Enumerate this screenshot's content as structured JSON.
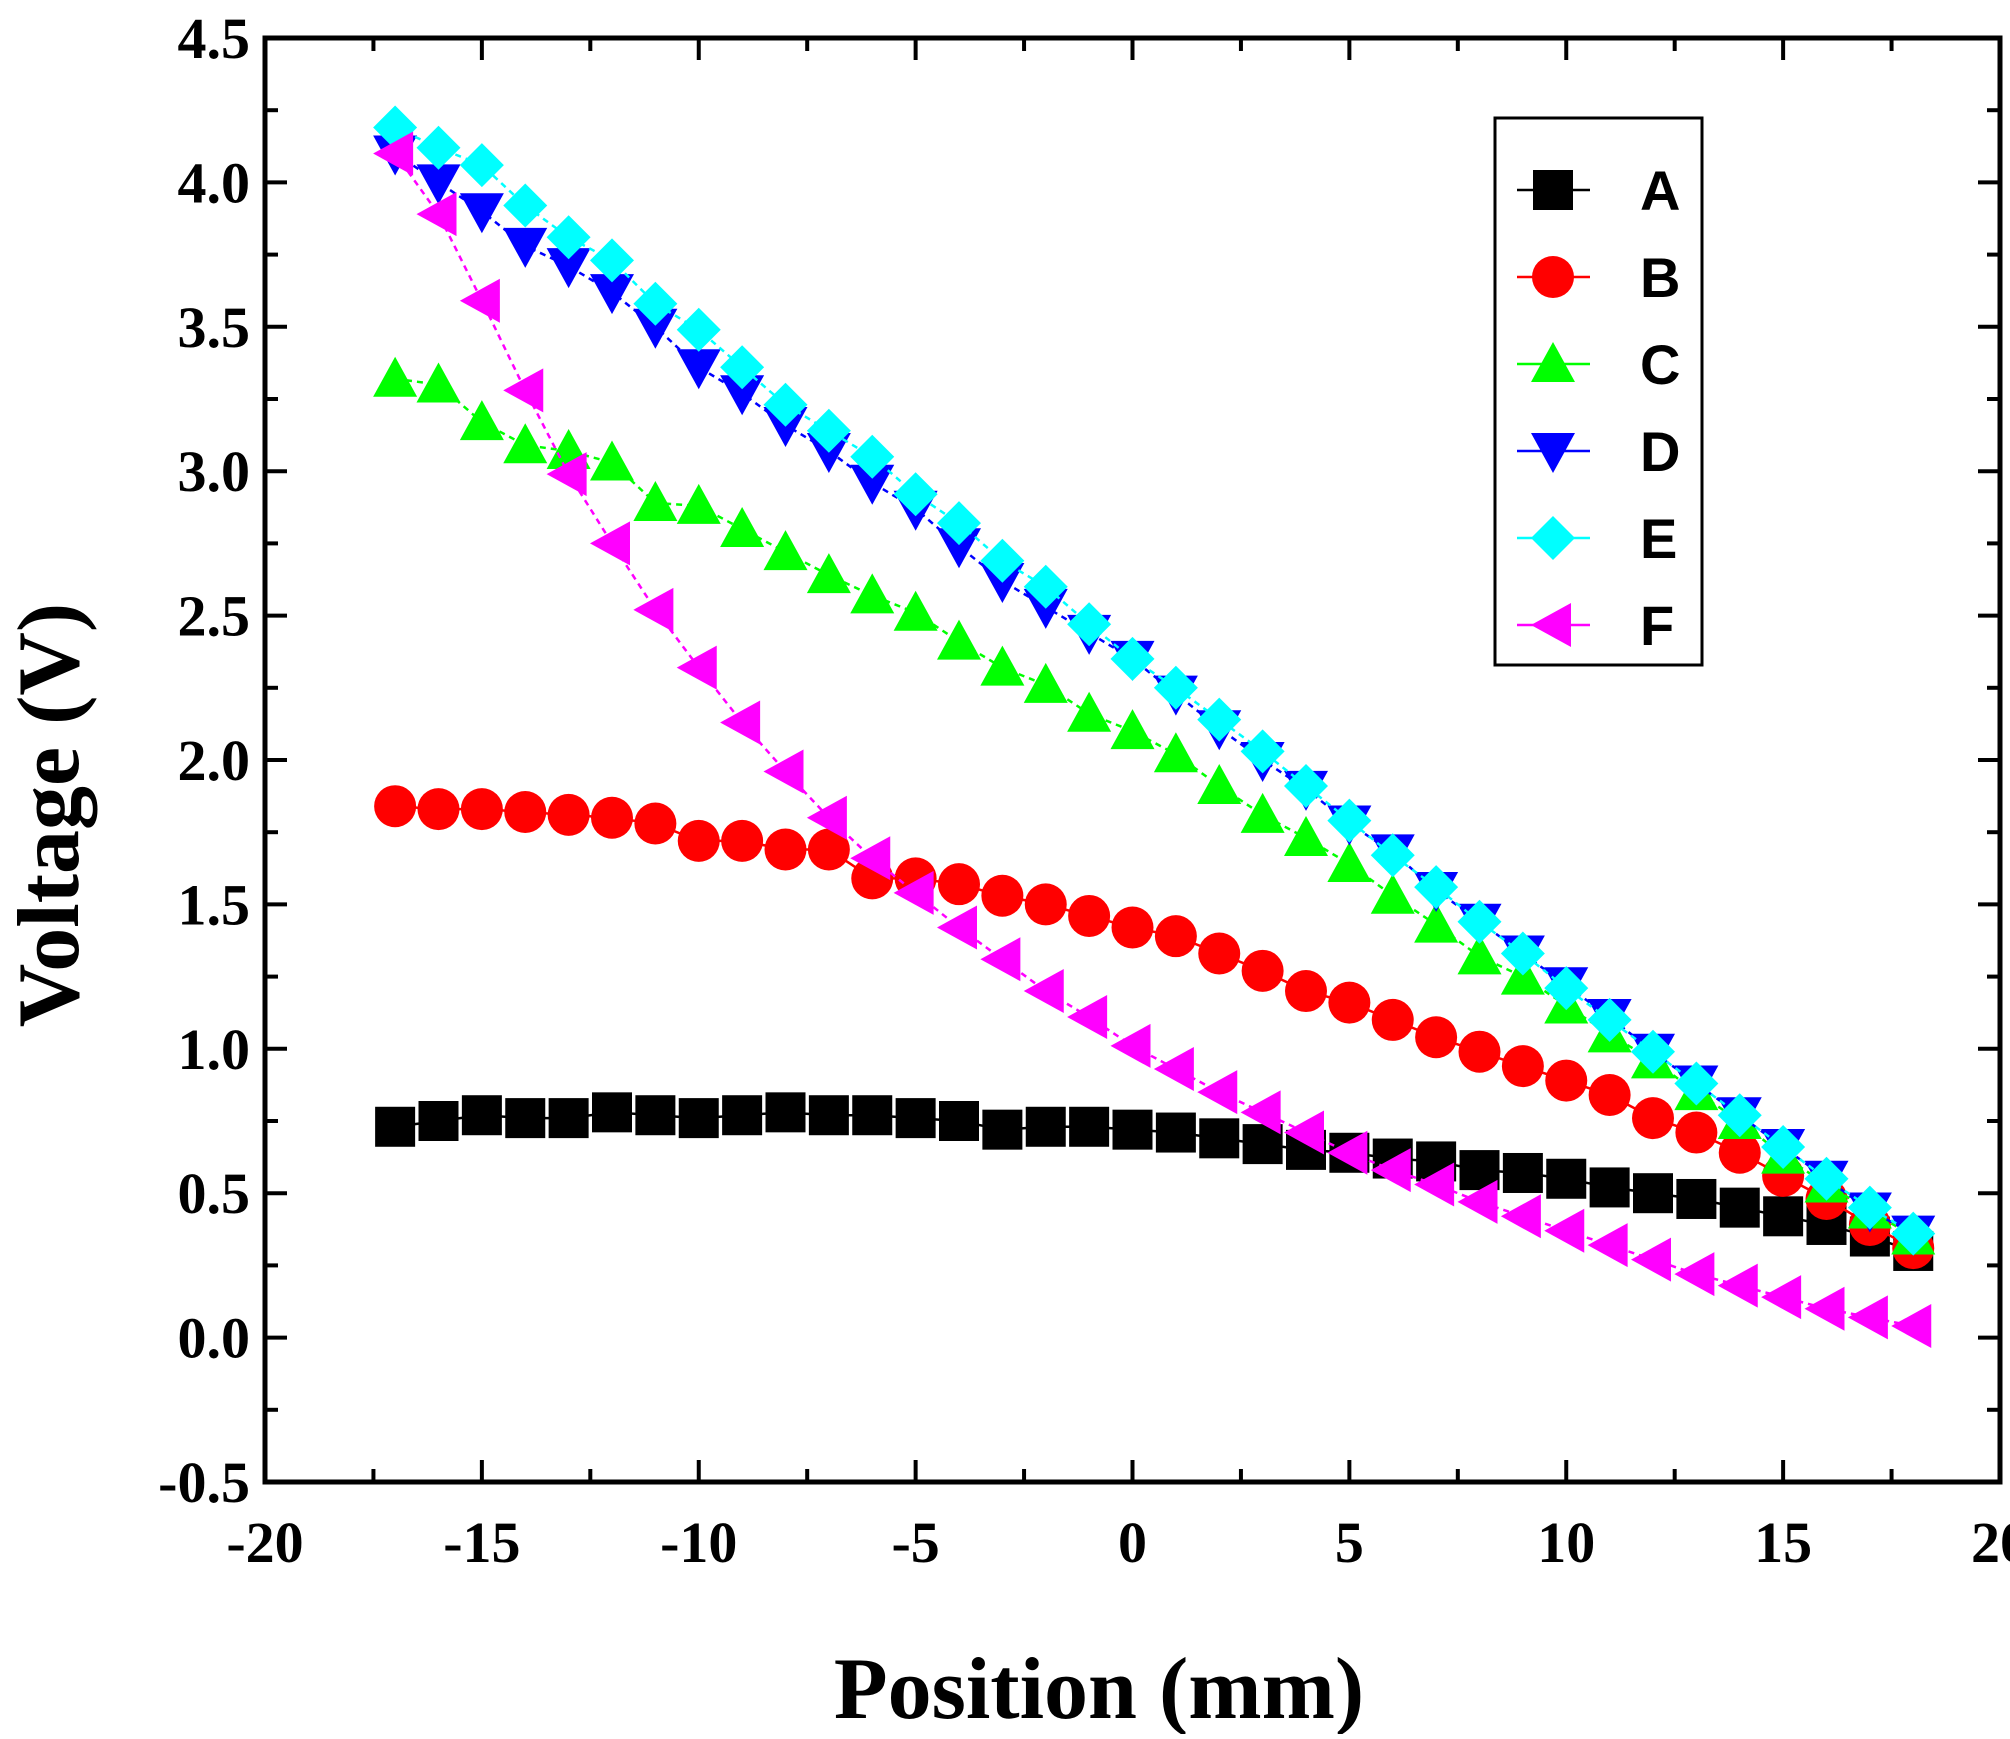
{
  "chart_data": {
    "type": "line",
    "title": "",
    "xlabel": "Position (mm)",
    "ylabel": "Voltage (V)",
    "xlim": [
      -20,
      20
    ],
    "ylim": [
      -0.5,
      4.5
    ],
    "xticks": [
      -20,
      -15,
      -10,
      -5,
      0,
      5,
      10,
      15,
      20
    ],
    "xtick_labels": [
      "-20",
      "-15",
      "-10",
      "-5",
      "0",
      "5",
      "10",
      "15",
      "20"
    ],
    "yticks": [
      -0.5,
      0.0,
      0.5,
      1.0,
      1.5,
      2.0,
      2.5,
      3.0,
      3.5,
      4.0,
      4.5
    ],
    "ytick_labels": [
      "-0.5",
      "0.0",
      "0.5",
      "1.0",
      "1.5",
      "2.0",
      "2.5",
      "3.0",
      "3.5",
      "4.0",
      "4.5"
    ],
    "grid": false,
    "legend_position": "top-right",
    "x": [
      -17,
      -16,
      -15,
      -14,
      -13,
      -12,
      -11,
      -10,
      -9,
      -8,
      -7,
      -6,
      -5,
      -4,
      -3,
      -2,
      -1,
      0,
      1,
      2,
      3,
      4,
      5,
      6,
      7,
      8,
      9,
      10,
      11,
      12,
      13,
      14,
      15,
      16,
      17,
      18
    ],
    "series": [
      {
        "name": "A",
        "marker": "square",
        "color": "#000000",
        "values": [
          0.73,
          0.75,
          0.77,
          0.76,
          0.76,
          0.78,
          0.77,
          0.76,
          0.77,
          0.78,
          0.77,
          0.77,
          0.76,
          0.75,
          0.72,
          0.73,
          0.73,
          0.72,
          0.71,
          0.69,
          0.67,
          0.65,
          0.64,
          0.62,
          0.61,
          0.58,
          0.57,
          0.55,
          0.52,
          0.5,
          0.48,
          0.45,
          0.42,
          0.39,
          0.35,
          0.3
        ]
      },
      {
        "name": "B",
        "marker": "circle",
        "color": "#ff0000",
        "values": [
          1.84,
          1.83,
          1.83,
          1.82,
          1.81,
          1.8,
          1.78,
          1.72,
          1.72,
          1.69,
          1.69,
          1.59,
          1.59,
          1.57,
          1.53,
          1.5,
          1.46,
          1.42,
          1.39,
          1.33,
          1.27,
          1.2,
          1.16,
          1.1,
          1.04,
          0.99,
          0.94,
          0.89,
          0.84,
          0.76,
          0.71,
          0.64,
          0.56,
          0.48,
          0.39,
          0.31
        ]
      },
      {
        "name": "C",
        "marker": "triangle-up",
        "color": "#00ff00",
        "values": [
          3.32,
          3.3,
          3.17,
          3.09,
          3.07,
          3.03,
          2.89,
          2.88,
          2.8,
          2.72,
          2.64,
          2.57,
          2.51,
          2.41,
          2.32,
          2.26,
          2.16,
          2.1,
          2.02,
          1.91,
          1.81,
          1.73,
          1.64,
          1.53,
          1.43,
          1.32,
          1.25,
          1.15,
          1.05,
          0.96,
          0.85,
          0.75,
          0.63,
          0.53,
          0.44,
          0.35
        ]
      },
      {
        "name": "D",
        "marker": "triangle-down",
        "color": "#0000ff",
        "values": [
          4.1,
          4.0,
          3.9,
          3.78,
          3.71,
          3.62,
          3.5,
          3.36,
          3.27,
          3.16,
          3.07,
          2.96,
          2.87,
          2.74,
          2.62,
          2.53,
          2.44,
          2.35,
          2.23,
          2.11,
          2.0,
          1.9,
          1.78,
          1.68,
          1.55,
          1.44,
          1.33,
          1.22,
          1.11,
          0.99,
          0.88,
          0.77,
          0.66,
          0.55,
          0.44,
          0.36
        ]
      },
      {
        "name": "E",
        "marker": "diamond",
        "color": "#00ffff",
        "values": [
          4.19,
          4.12,
          4.06,
          3.92,
          3.81,
          3.73,
          3.58,
          3.49,
          3.36,
          3.23,
          3.14,
          3.05,
          2.92,
          2.82,
          2.69,
          2.6,
          2.47,
          2.35,
          2.25,
          2.14,
          2.03,
          1.91,
          1.79,
          1.67,
          1.56,
          1.44,
          1.33,
          1.21,
          1.1,
          0.99,
          0.88,
          0.77,
          0.66,
          0.55,
          0.45,
          0.36
        ]
      },
      {
        "name": "F",
        "marker": "triangle-left",
        "color": "#ff00ff",
        "values": [
          4.1,
          3.89,
          3.59,
          3.28,
          2.99,
          2.75,
          2.52,
          2.32,
          2.13,
          1.96,
          1.8,
          1.66,
          1.54,
          1.42,
          1.31,
          1.2,
          1.11,
          1.01,
          0.93,
          0.85,
          0.78,
          0.71,
          0.64,
          0.58,
          0.53,
          0.47,
          0.42,
          0.37,
          0.32,
          0.27,
          0.22,
          0.18,
          0.14,
          0.1,
          0.07,
          0.04
        ]
      }
    ]
  }
}
